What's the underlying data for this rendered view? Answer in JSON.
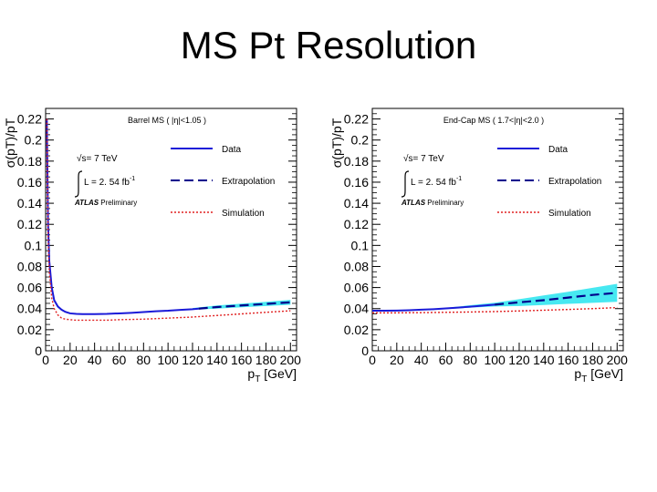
{
  "slide": {
    "title": "MS Pt Resolution"
  },
  "colors": {
    "data": "#1a1ad8",
    "extrapolation": "#00008c",
    "simulation": "#e02020",
    "band": "#33e6f0"
  },
  "chart_data": [
    {
      "type": "line",
      "region": "Barrel MS ( |η|<1.05 )",
      "xlabel_main": "p",
      "xlabel_sub": "T",
      "xlabel_unit": " [GeV]",
      "ylabel": "σ(pT)/pT",
      "xlim": [
        0,
        205
      ],
      "ylim": [
        0,
        0.23
      ],
      "xticks": [
        "0",
        "20",
        "40",
        "60",
        "80",
        "100",
        "120",
        "140",
        "160",
        "180",
        "200"
      ],
      "yticks": [
        "0",
        "0.02",
        "0.04",
        "0.06",
        "0.08",
        "0.1",
        "0.12",
        "0.14",
        "0.16",
        "0.18",
        "0.2",
        "0.22"
      ],
      "energy": "√s= 7 TeV",
      "lumi": "L = 2. 54 fb",
      "lumi_exp": "-1",
      "atlas": "ATLAS",
      "atlas_label": "Preliminary",
      "legend": [
        "Data",
        "Extrapolation",
        "Simulation"
      ],
      "series": [
        {
          "name": "Data",
          "style": "solid",
          "x": [
            1,
            2,
            3,
            5,
            7,
            10,
            13,
            16,
            20,
            25,
            30,
            40,
            50,
            60,
            70,
            80,
            90,
            100,
            110,
            120,
            125
          ],
          "y": [
            0.22,
            0.12,
            0.085,
            0.06,
            0.048,
            0.042,
            0.039,
            0.037,
            0.0355,
            0.035,
            0.0348,
            0.0348,
            0.035,
            0.0355,
            0.036,
            0.0367,
            0.0375,
            0.038,
            0.0388,
            0.0395,
            0.04
          ]
        },
        {
          "name": "Extrapolation",
          "style": "dashed",
          "x": [
            125,
            140,
            160,
            180,
            200
          ],
          "y": [
            0.04,
            0.0415,
            0.043,
            0.0445,
            0.046
          ]
        },
        {
          "name": "Simulation",
          "style": "dotted",
          "x": [
            1,
            2,
            3,
            5,
            7,
            10,
            13,
            16,
            20,
            25,
            30,
            40,
            50,
            60,
            80,
            100,
            120,
            140,
            160,
            180,
            200
          ],
          "y": [
            0.22,
            0.11,
            0.075,
            0.05,
            0.04,
            0.034,
            0.031,
            0.03,
            0.0295,
            0.029,
            0.029,
            0.029,
            0.029,
            0.0295,
            0.03,
            0.031,
            0.032,
            0.0335,
            0.035,
            0.0365,
            0.038
          ]
        }
      ],
      "band": {
        "x": [
          120,
          140,
          160,
          180,
          200
        ],
        "lo": [
          0.039,
          0.04,
          0.0413,
          0.0425,
          0.0437
        ],
        "hi": [
          0.0405,
          0.043,
          0.0447,
          0.0465,
          0.0483
        ]
      }
    },
    {
      "type": "line",
      "region": "End-Cap MS ( 1.7<|η|<2.0 )",
      "xlabel_main": "p",
      "xlabel_sub": "T",
      "xlabel_unit": " [GeV]",
      "ylabel": "σ(pT)/pT",
      "xlim": [
        0,
        205
      ],
      "ylim": [
        0,
        0.23
      ],
      "xticks": [
        "0",
        "20",
        "40",
        "60",
        "80",
        "100",
        "120",
        "140",
        "160",
        "180",
        "200"
      ],
      "yticks": [
        "0",
        "0.02",
        "0.04",
        "0.06",
        "0.08",
        "0.1",
        "0.12",
        "0.14",
        "0.16",
        "0.18",
        "0.2",
        "0.22"
      ],
      "energy": "√s= 7 TeV",
      "lumi": "L = 2. 54 fb",
      "lumi_exp": "-1",
      "atlas": "ATLAS",
      "atlas_label": "Preliminary",
      "legend": [
        "Data",
        "Extrapolation",
        "Simulation"
      ],
      "series": [
        {
          "name": "Data",
          "style": "solid",
          "x": [
            0,
            10,
            20,
            30,
            40,
            50,
            60,
            70,
            80,
            90,
            100
          ],
          "y": [
            0.038,
            0.038,
            0.0382,
            0.0385,
            0.039,
            0.0395,
            0.0402,
            0.041,
            0.0418,
            0.0428,
            0.0438
          ]
        },
        {
          "name": "Extrapolation",
          "style": "dashed",
          "x": [
            100,
            120,
            140,
            160,
            180,
            200
          ],
          "y": [
            0.0438,
            0.046,
            0.048,
            0.0505,
            0.053,
            0.055
          ]
        },
        {
          "name": "Simulation",
          "style": "dotted",
          "x": [
            0,
            20,
            40,
            60,
            80,
            100,
            120,
            140,
            160,
            180,
            200
          ],
          "y": [
            0.036,
            0.036,
            0.0362,
            0.0365,
            0.0368,
            0.0372,
            0.0378,
            0.0385,
            0.0392,
            0.04,
            0.041
          ]
        }
      ],
      "band": {
        "x": [
          60,
          80,
          100,
          120,
          140,
          160,
          180,
          200
        ],
        "lo": [
          0.0396,
          0.041,
          0.042,
          0.0425,
          0.0435,
          0.0445,
          0.0455,
          0.0465
        ],
        "hi": [
          0.0408,
          0.0432,
          0.0456,
          0.049,
          0.0525,
          0.056,
          0.0598,
          0.0635
        ]
      }
    }
  ]
}
